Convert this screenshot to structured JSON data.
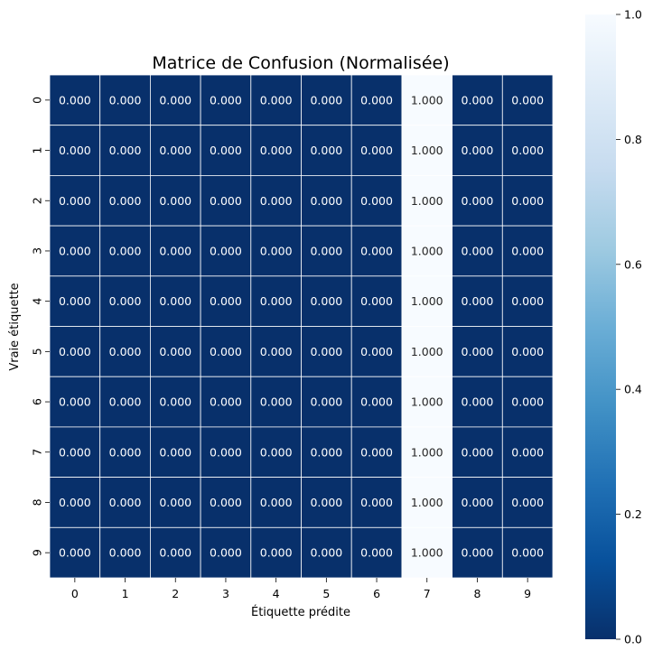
{
  "chart_data": {
    "type": "heatmap",
    "title": "Matrice de Confusion (Normalisée)",
    "xlabel": "Étiquette prédite",
    "ylabel": "Vraie étiquette",
    "x_categories": [
      "0",
      "1",
      "2",
      "3",
      "4",
      "5",
      "6",
      "7",
      "8",
      "9"
    ],
    "y_categories": [
      "0",
      "1",
      "2",
      "3",
      "4",
      "5",
      "6",
      "7",
      "8",
      "9"
    ],
    "values": [
      [
        0,
        0,
        0,
        0,
        0,
        0,
        0,
        1,
        0,
        0
      ],
      [
        0,
        0,
        0,
        0,
        0,
        0,
        0,
        1,
        0,
        0
      ],
      [
        0,
        0,
        0,
        0,
        0,
        0,
        0,
        1,
        0,
        0
      ],
      [
        0,
        0,
        0,
        0,
        0,
        0,
        0,
        1,
        0,
        0
      ],
      [
        0,
        0,
        0,
        0,
        0,
        0,
        0,
        1,
        0,
        0
      ],
      [
        0,
        0,
        0,
        0,
        0,
        0,
        0,
        1,
        0,
        0
      ],
      [
        0,
        0,
        0,
        0,
        0,
        0,
        0,
        1,
        0,
        0
      ],
      [
        0,
        0,
        0,
        0,
        0,
        0,
        0,
        1,
        0,
        0
      ],
      [
        0,
        0,
        0,
        0,
        0,
        0,
        0,
        1,
        0,
        0
      ],
      [
        0,
        0,
        0,
        0,
        0,
        0,
        0,
        1,
        0,
        0
      ]
    ],
    "value_format": "0.000",
    "colormap": "Blues",
    "colorbar": {
      "range": [
        0.0,
        1.0
      ],
      "ticks": [
        "0.0",
        "0.2",
        "0.4",
        "0.6",
        "0.8",
        "1.0"
      ]
    },
    "colors": {
      "low": "#08306b",
      "high": "#f7fbff",
      "cell_border": "#ffffff",
      "text_on_dark": "#ffffff",
      "text_on_light": "#262626"
    }
  }
}
